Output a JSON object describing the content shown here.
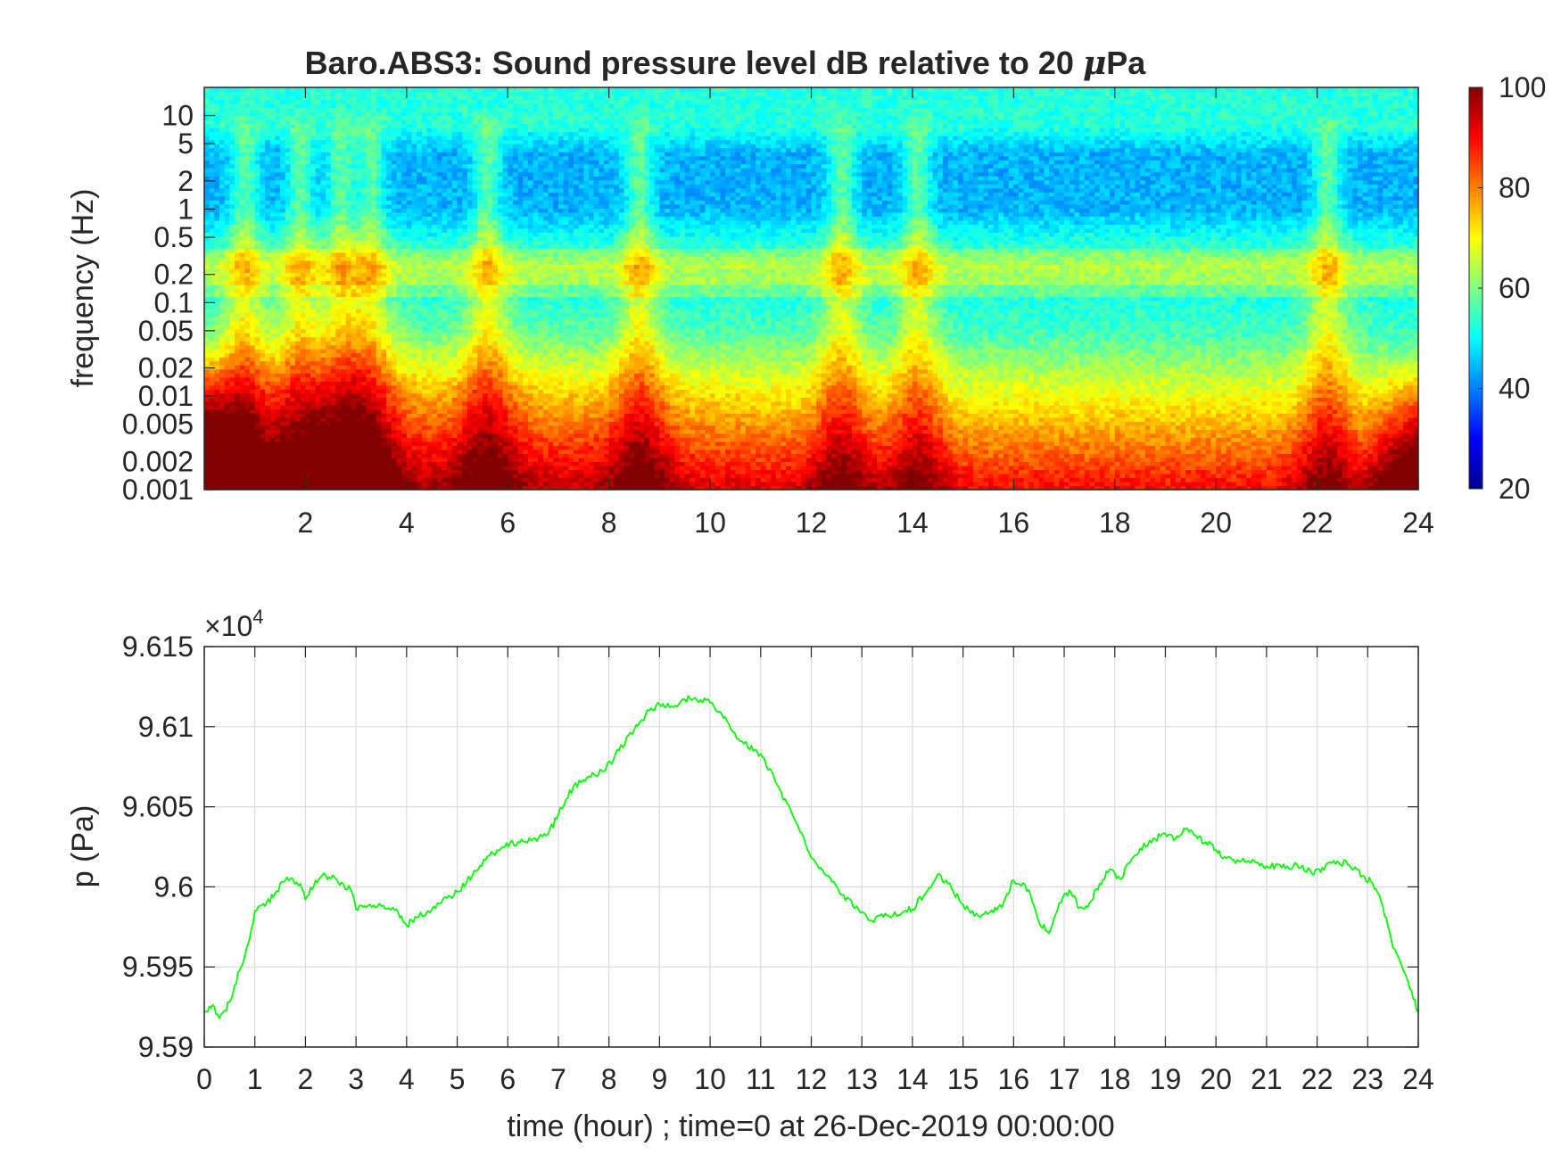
{
  "chart_data": [
    {
      "type": "heatmap",
      "title": "Baro.ABS3: Sound pressure level dB relative to 20 μPa",
      "title_prefix": "Baro.ABS3: Sound pressure level dB relative to 20 ",
      "title_mu": "μ",
      "title_suffix": "Pa",
      "xlabel": "",
      "ylabel": "frequency (Hz)",
      "x_range": [
        0,
        24
      ],
      "x_ticks": [
        2,
        4,
        6,
        8,
        10,
        12,
        14,
        16,
        18,
        20,
        22,
        24
      ],
      "y_scale": "log",
      "y_range": [
        0.001,
        20
      ],
      "y_ticks": [
        0.001,
        0.002,
        0.005,
        0.01,
        0.02,
        0.05,
        0.1,
        0.2,
        0.5,
        1,
        2,
        5,
        10
      ],
      "y_tick_labels": [
        "0.001",
        "0.002",
        "0.005",
        "0.01",
        "0.02",
        "0.05",
        "0.1",
        "0.2",
        "0.5",
        "1",
        "2",
        "5",
        "10"
      ],
      "colormap": "jet",
      "color_range": [
        20,
        100
      ],
      "colorbar_ticks": [
        20,
        40,
        60,
        80,
        100
      ],
      "colorbar_tick_labels": [
        "20",
        "40",
        "60",
        "80",
        "100"
      ],
      "event_hours": [
        0.8,
        1.9,
        2.7,
        3.3,
        5.6,
        8.6,
        12.6,
        14.1,
        22.2
      ]
    },
    {
      "type": "line",
      "xlabel": "time (hour) ; time=0 at 26-Dec-2019 00:00:00",
      "ylabel": "p (Pa)",
      "y_exponent_label": "×10",
      "y_exponent_power": "4",
      "x_range": [
        0,
        24
      ],
      "y_range": [
        9.59,
        9.615
      ],
      "x_ticks": [
        0,
        1,
        2,
        3,
        4,
        5,
        6,
        7,
        8,
        9,
        10,
        11,
        12,
        13,
        14,
        15,
        16,
        17,
        18,
        19,
        20,
        21,
        22,
        23,
        24
      ],
      "y_ticks": [
        9.59,
        9.595,
        9.6,
        9.605,
        9.61,
        9.615
      ],
      "y_tick_labels": [
        "9.59",
        "9.595",
        "9.6",
        "9.605",
        "9.61",
        "9.615"
      ],
      "grid": true,
      "line_color": "#00ff00",
      "series": [
        {
          "x": [
            0,
            0.2,
            0.3,
            0.5,
            0.7,
            0.9,
            1.0,
            1.2,
            1.4,
            1.6,
            1.9,
            2.0,
            2.2,
            2.4,
            2.6,
            2.9,
            3.0,
            3.2,
            3.5,
            3.8,
            4.0,
            4.2,
            4.5,
            4.8,
            5.0,
            5.3,
            5.6,
            5.9,
            6.2,
            6.5,
            6.8,
            7.0,
            7.3,
            7.6,
            7.9,
            8.2,
            8.5,
            8.8,
            9.0,
            9.2,
            9.5,
            9.7,
            10.0,
            10.3,
            10.6,
            11.0,
            11.3,
            11.7,
            12.0,
            12.3,
            12.6,
            12.9,
            13.2,
            13.5,
            13.8,
            14.0,
            14.3,
            14.5,
            14.7,
            15.0,
            15.3,
            15.6,
            15.8,
            16.0,
            16.3,
            16.5,
            16.7,
            16.9,
            17.1,
            17.3,
            17.5,
            17.7,
            17.9,
            18.1,
            18.3,
            18.5,
            18.8,
            19.0,
            19.2,
            19.4,
            19.6,
            19.8,
            20.0,
            20.2,
            20.5,
            20.8,
            21.0,
            21.3,
            21.6,
            21.9,
            22.1,
            22.4,
            22.6,
            22.9,
            23.1,
            23.3,
            23.5,
            23.7,
            23.9,
            24.0
          ],
          "y": [
            9.5922,
            9.5925,
            9.5918,
            9.5928,
            9.5948,
            9.5968,
            9.5985,
            9.5988,
            9.5996,
            9.6004,
            9.6002,
            9.5992,
            9.6004,
            9.6007,
            9.6005,
            9.5998,
            9.5986,
            9.5987,
            9.5988,
            9.5986,
            9.5976,
            9.5981,
            9.5986,
            9.5993,
            9.5997,
            9.6007,
            9.6019,
            9.6025,
            9.6028,
            9.603,
            9.6033,
            9.6045,
            9.6063,
            9.6069,
            9.6072,
            9.6085,
            9.6098,
            9.611,
            9.6114,
            9.6112,
            9.6117,
            9.6118,
            9.6115,
            9.6106,
            9.6091,
            9.6083,
            9.6065,
            9.604,
            9.6018,
            9.6007,
            9.5995,
            9.5988,
            9.5979,
            9.5982,
            9.5984,
            9.5986,
            9.5998,
            9.6008,
            9.6002,
            9.5989,
            9.5982,
            9.5984,
            9.599,
            9.6004,
            9.5998,
            9.5978,
            9.5971,
            9.599,
            9.5998,
            9.5987,
            9.599,
            9.6002,
            9.6011,
            9.6005,
            9.6015,
            9.6024,
            9.603,
            9.6033,
            9.603,
            9.6036,
            9.6032,
            9.6028,
            9.6023,
            9.6018,
            9.6016,
            9.6015,
            9.6013,
            9.6012,
            9.6014,
            9.6008,
            9.6012,
            9.6016,
            9.6014,
            9.6007,
            9.6002,
            9.5988,
            9.5962,
            9.5948,
            9.593,
            9.5922
          ]
        }
      ]
    }
  ]
}
